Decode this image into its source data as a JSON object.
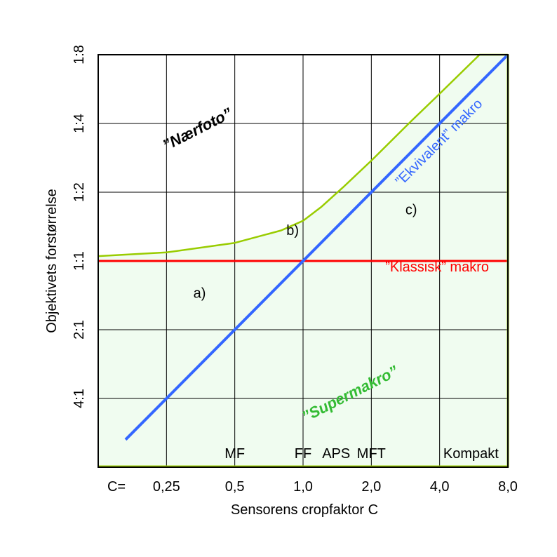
{
  "chart_data": {
    "type": "line",
    "xlabel": "Sensorens cropfaktor C",
    "ylabel": "Objektivets forstørrelse",
    "x_scale": "log",
    "y_scale": "log",
    "x_prefix": "C=",
    "x_ticks": [
      {
        "value": 0.25,
        "label": "0,25"
      },
      {
        "value": 0.5,
        "label": "0,5"
      },
      {
        "value": 1.0,
        "label": "1,0"
      },
      {
        "value": 2.0,
        "label": "2,0"
      },
      {
        "value": 4.0,
        "label": "4,0"
      },
      {
        "value": 8.0,
        "label": "8,0"
      }
    ],
    "y_ticks": [
      {
        "value": 0.25,
        "label": "4:1"
      },
      {
        "value": 0.5,
        "label": "2:1"
      },
      {
        "value": 1.0,
        "label": "1:1"
      },
      {
        "value": 2.0,
        "label": "1:2"
      },
      {
        "value": 4.0,
        "label": "1:4"
      },
      {
        "value": 8.0,
        "label": "1:8"
      }
    ],
    "xlim": [
      0.125,
      8.0
    ],
    "ylim": [
      0.125,
      8.0
    ],
    "grid": true,
    "series": [
      {
        "name": "”Klassisk” makro",
        "color": "#ff0000",
        "x": [
          0.125,
          8.0
        ],
        "y": [
          1.0,
          1.0
        ]
      },
      {
        "name": "”Ekvivalent” makro",
        "color": "#3366ff",
        "x": [
          0.165,
          8.0
        ],
        "y": [
          0.165,
          8.0
        ]
      },
      {
        "name": "",
        "color": "#99cc00",
        "x": [
          0.125,
          0.25,
          0.5,
          0.8,
          1.0,
          1.2,
          1.5,
          2.0,
          3.0,
          4.0,
          6.0,
          8.0
        ],
        "y": [
          1.05,
          1.09,
          1.2,
          1.36,
          1.5,
          1.72,
          2.1,
          2.75,
          4.1,
          5.4,
          8.0,
          8.0
        ]
      }
    ],
    "sensor_labels": [
      {
        "x": 0.5,
        "label": "MF"
      },
      {
        "x": 1.0,
        "label": "FF"
      },
      {
        "x": 1.4,
        "label": "APS"
      },
      {
        "x": 2.0,
        "label": "MFT"
      },
      {
        "x": 5.5,
        "label": "Kompakt"
      }
    ],
    "annotations": [
      {
        "text": "a)",
        "x": 0.35,
        "y": 0.69
      },
      {
        "text": "b)",
        "x": 0.9,
        "y": 1.3
      },
      {
        "text": "c)",
        "x": 3.0,
        "y": 1.6
      }
    ],
    "region_labels": [
      {
        "text": "”Nærfoto”",
        "x": 0.35,
        "y": 3.6,
        "rotate": -27,
        "color": "#000000"
      },
      {
        "text": "”Supermakro”",
        "x": 1.65,
        "y": 0.25,
        "rotate": -27,
        "color": "#33bb33"
      }
    ],
    "line_labels": {
      "klassisk": {
        "text": "”Klassisk” makro",
        "x": 3.9,
        "y": 0.9,
        "color": "#ff0000"
      },
      "ekvivalent": {
        "text": "”Ekvivalent” makro",
        "x": 4.1,
        "y": 3.2,
        "rotate": -45,
        "color": "#3366ff"
      }
    },
    "fill_color": "#f0fcf0",
    "fill_border_color": "#99cc00"
  }
}
